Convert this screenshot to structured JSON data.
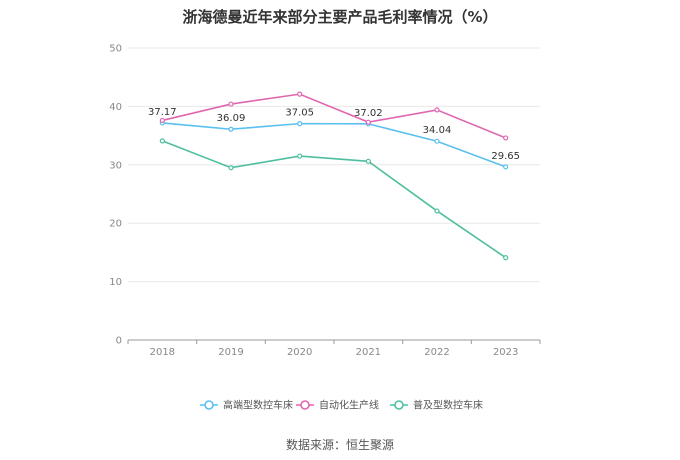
{
  "title": "浙海德曼近年来部分主要产品毛利率情况（%）",
  "source": "数据来源：恒生聚源",
  "chart_data": {
    "type": "line",
    "title": "浙海德曼近年来部分主要产品毛利率情况（%）",
    "x": [
      "2018",
      "2019",
      "2020",
      "2021",
      "2022",
      "2023"
    ],
    "ylim": [
      0,
      50
    ],
    "yticks": [
      0,
      10,
      20,
      30,
      40,
      50
    ],
    "grid": true,
    "legend_position": "bottom",
    "series": [
      {
        "name": "高端型数控车床",
        "color": "#5bc0f0",
        "values": [
          37.17,
          36.09,
          37.05,
          37.02,
          34.04,
          29.65
        ],
        "labels": [
          "37.17",
          "36.09",
          "37.05",
          "37.02",
          "34.04",
          "29.65"
        ]
      },
      {
        "name": "自动化生产线",
        "color": "#e066b0",
        "values": [
          37.6,
          40.4,
          42.1,
          37.3,
          39.4,
          34.6
        ]
      },
      {
        "name": "普及型数控车床",
        "color": "#4dbf9f",
        "values": [
          34.1,
          29.5,
          31.5,
          30.6,
          22.1,
          14.1
        ]
      }
    ]
  }
}
